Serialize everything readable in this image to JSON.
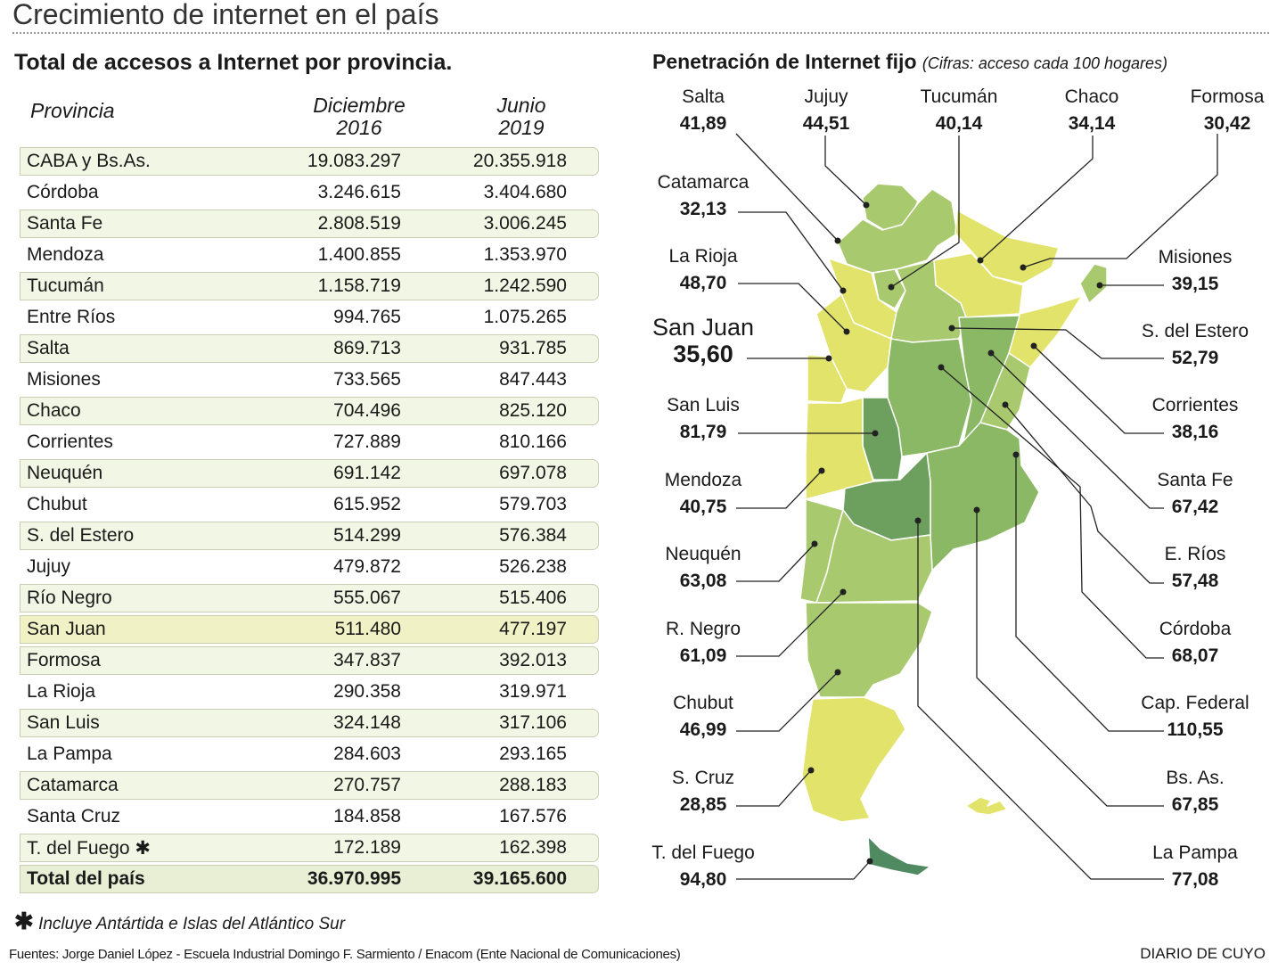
{
  "page_title": "Crecimiento de internet en el país",
  "table": {
    "title": "Total de accesos a Internet por provincia.",
    "headers": {
      "provincia": "Provincia",
      "dic_2016_line1": "Diciembre",
      "dic_2016_line2": "2016",
      "jun_2019_line1": "Junio",
      "jun_2019_line2": "2019"
    },
    "rows": [
      {
        "name": "CABA y Bs.As.",
        "dic_2016": "19.083.297",
        "jun_2019": "20.355.918"
      },
      {
        "name": "Córdoba",
        "dic_2016": "3.246.615",
        "jun_2019": "3.404.680"
      },
      {
        "name": "Santa Fe",
        "dic_2016": "2.808.519",
        "jun_2019": "3.006.245"
      },
      {
        "name": "Mendoza",
        "dic_2016": "1.400.855",
        "jun_2019": "1.353.970"
      },
      {
        "name": "Tucumán",
        "dic_2016": "1.158.719",
        "jun_2019": "1.242.590"
      },
      {
        "name": "Entre Ríos",
        "dic_2016": "994.765",
        "jun_2019": "1.075.265"
      },
      {
        "name": "Salta",
        "dic_2016": "869.713",
        "jun_2019": "931.785"
      },
      {
        "name": "Misiones",
        "dic_2016": "733.565",
        "jun_2019": "847.443"
      },
      {
        "name": "Chaco",
        "dic_2016": "704.496",
        "jun_2019": "825.120"
      },
      {
        "name": "Corrientes",
        "dic_2016": "727.889",
        "jun_2019": "810.166"
      },
      {
        "name": "Neuquén",
        "dic_2016": "691.142",
        "jun_2019": "697.078"
      },
      {
        "name": "Chubut",
        "dic_2016": "615.952",
        "jun_2019": "579.703"
      },
      {
        "name": "S. del Estero",
        "dic_2016": "514.299",
        "jun_2019": "576.384"
      },
      {
        "name": "Jujuy",
        "dic_2016": "479.872",
        "jun_2019": "526.238"
      },
      {
        "name": "Río Negro",
        "dic_2016": "555.067",
        "jun_2019": "515.406"
      },
      {
        "name": "San Juan",
        "dic_2016": "511.480",
        "jun_2019": "477.197",
        "highlight": true
      },
      {
        "name": "Formosa",
        "dic_2016": "347.837",
        "jun_2019": "392.013"
      },
      {
        "name": "La Rioja",
        "dic_2016": "290.358",
        "jun_2019": "319.971"
      },
      {
        "name": "San Luis",
        "dic_2016": "324.148",
        "jun_2019": "317.106"
      },
      {
        "name": "La Pampa",
        "dic_2016": "284.603",
        "jun_2019": "293.165"
      },
      {
        "name": "Catamarca",
        "dic_2016": "270.757",
        "jun_2019": "288.183"
      },
      {
        "name": "Santa Cruz",
        "dic_2016": "184.858",
        "jun_2019": "167.576"
      },
      {
        "name": "T. del Fuego ✱",
        "dic_2016": "172.189",
        "jun_2019": "162.398"
      }
    ],
    "total": {
      "name": "Total del país",
      "dic_2016": "36.970.995",
      "jun_2019": "39.165.600"
    },
    "footnote_symbol": "✱",
    "footnote": "Incluye Antártida e Islas del Atlántico Sur"
  },
  "map": {
    "title": "Penetración de Internet fijo",
    "subtitle": "(Cifras: acceso cada 100 hogares)",
    "labels": [
      {
        "id": "salta",
        "name": "Salta",
        "value": "41,89"
      },
      {
        "id": "jujuy",
        "name": "Jujuy",
        "value": "44,51"
      },
      {
        "id": "tucuman",
        "name": "Tucumán",
        "value": "40,14"
      },
      {
        "id": "chaco",
        "name": "Chaco",
        "value": "34,14"
      },
      {
        "id": "formosa",
        "name": "Formosa",
        "value": "30,42"
      },
      {
        "id": "catamarca",
        "name": "Catamarca",
        "value": "32,13"
      },
      {
        "id": "larioja",
        "name": "La Rioja",
        "value": "48,70"
      },
      {
        "id": "sanjuan",
        "name": "San Juan",
        "value": "35,60"
      },
      {
        "id": "sanluis",
        "name": "San Luis",
        "value": "81,79"
      },
      {
        "id": "mendoza",
        "name": "Mendoza",
        "value": "40,75"
      },
      {
        "id": "neuquen",
        "name": "Neuquén",
        "value": "63,08"
      },
      {
        "id": "rionegro",
        "name": "R. Negro",
        "value": "61,09"
      },
      {
        "id": "chubut",
        "name": "Chubut",
        "value": "46,99"
      },
      {
        "id": "santacruz",
        "name": "S. Cruz",
        "value": "28,85"
      },
      {
        "id": "tdf",
        "name": "T. del Fuego",
        "value": "94,80"
      },
      {
        "id": "misiones",
        "name": "Misiones",
        "value": "39,15"
      },
      {
        "id": "sgoestero",
        "name": "S. del Estero",
        "value": "52,79"
      },
      {
        "id": "corrientes",
        "name": "Corrientes",
        "value": "38,16"
      },
      {
        "id": "santafe",
        "name": "Santa Fe",
        "value": "67,42"
      },
      {
        "id": "erios",
        "name": "E. Ríos",
        "value": "57,48"
      },
      {
        "id": "cordoba",
        "name": "Córdoba",
        "value": "68,07"
      },
      {
        "id": "capfed",
        "name": "Cap. Federal",
        "value": "110,55"
      },
      {
        "id": "bsas",
        "name": "Bs. As.",
        "value": "67,85"
      },
      {
        "id": "lapampa",
        "name": "La Pampa",
        "value": "77,08"
      }
    ]
  },
  "chart_data": {
    "type": "table",
    "title": "Total de accesos a Internet por provincia.",
    "columns": [
      "Provincia",
      "Diciembre 2016",
      "Junio 2019"
    ],
    "note": "Map: Penetración de Internet fijo (Cifras: acceso cada 100 hogares)",
    "penetracion": {
      "Salta": 41.89,
      "Jujuy": 44.51,
      "Tucumán": 40.14,
      "Chaco": 34.14,
      "Formosa": 30.42,
      "Catamarca": 32.13,
      "La Rioja": 48.7,
      "San Juan": 35.6,
      "San Luis": 81.79,
      "Mendoza": 40.75,
      "Neuquén": 63.08,
      "R. Negro": 61.09,
      "Chubut": 46.99,
      "S. Cruz": 28.85,
      "T. del Fuego": 94.8,
      "Misiones": 39.15,
      "S. del Estero": 52.79,
      "Corrientes": 38.16,
      "Santa Fe": 67.42,
      "E. Ríos": 57.48,
      "Córdoba": 68.07,
      "Cap. Federal": 110.55,
      "Bs. As.": 67.85,
      "La Pampa": 77.08
    }
  },
  "colors": {
    "yellow": "#e2e36a",
    "light_green": "#a9c96f",
    "green": "#8ab864",
    "dark_green": "#6d9f5e",
    "darkest": "#4f8a60",
    "band": "#f2f6e4"
  },
  "sources": "Fuentes:  Jorge Daniel López - Escuela Industrial Domingo F. Sarmiento /  Enacom (Ente Nacional de Comunicaciones)",
  "brand": "DIARIO DE CUYO"
}
